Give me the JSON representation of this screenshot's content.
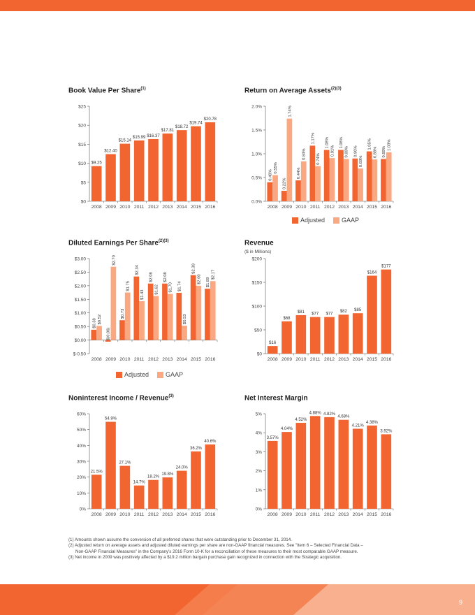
{
  "colors": {
    "adjusted": "#f26531",
    "gaap": "#f9a882",
    "axis": "#555555",
    "text": "#333333"
  },
  "legend": {
    "adjusted": "Adjusted",
    "gaap": "GAAP"
  },
  "page_number": "9",
  "footnotes": [
    "(1) Amounts shown assume the conversion of all preferred shares that were outstanding prior to December 31, 2014.",
    "(2) Adjusted return on average assets and adjusted diluted earnings per share are non-GAAP financial measures. See \"Item 6 – Selected Financial Data –",
    "Non-GAAP Financial Measures\" in the Company's 2016 Form 10-K for a reconciliation of these measures to their most comparable GAAP measure.",
    "(3) Net income in 2009 was positively affected by a $19.2 million bargain purchase gain recognized in connection with the Strategic acquisition."
  ],
  "chart_data": [
    {
      "id": "bvps",
      "type": "bar",
      "title": "Book Value Per Share",
      "title_sup": "(1)",
      "subtitle": "",
      "categories": [
        "2008",
        "2009",
        "2010",
        "2011",
        "2012",
        "2013",
        "2014",
        "2015",
        "2016"
      ],
      "series": [
        {
          "name": "",
          "values": [
            9.25,
            12.4,
            15.14,
            15.99,
            16.37,
            17.81,
            18.72,
            19.74,
            20.78
          ],
          "labels": [
            "$9.25",
            "$12.40",
            "$15.14",
            "$15.99",
            "$16.37",
            "$17.81",
            "$18.72",
            "$19.74",
            "$20.78"
          ]
        }
      ],
      "ylim": [
        0,
        25
      ],
      "yticks": [
        0,
        5,
        10,
        15,
        20,
        25
      ],
      "ytick_labels": [
        "$0",
        "$5",
        "$10",
        "$15",
        "$20",
        "$25"
      ],
      "label_rotate": false,
      "legend": false
    },
    {
      "id": "roaa",
      "type": "bar",
      "title": "Return on Average Assets",
      "title_sup": "(2)(3)",
      "subtitle": "",
      "categories": [
        "2008",
        "2009",
        "2010",
        "2011",
        "2012",
        "2013",
        "2014",
        "2015",
        "2016"
      ],
      "series": [
        {
          "name": "Adjusted",
          "values": [
            0.4,
            0.22,
            0.44,
            1.17,
            1.08,
            1.08,
            0.9,
            1.05,
            0.89
          ],
          "labels": [
            "0.40%",
            "0.22%",
            "0.44%",
            "1.17%",
            "1.08%",
            "1.08%",
            "0.90%",
            "1.05%",
            "0.89%"
          ]
        },
        {
          "name": "GAAP",
          "values": [
            0.55,
            1.74,
            0.84,
            0.74,
            0.91,
            0.89,
            0.69,
            0.88,
            1.03
          ],
          "labels": [
            "0.55%",
            "1.74%",
            "0.84%",
            "0.74%",
            "0.91%",
            "0.89%",
            "0.69%",
            "0.88%",
            "1.03%"
          ]
        }
      ],
      "ylim": [
        0,
        2.0
      ],
      "yticks": [
        0,
        0.5,
        1.0,
        1.5,
        2.0
      ],
      "ytick_labels": [
        "0.0%",
        "0.5%",
        "1.0%",
        "1.5%",
        "2.0%"
      ],
      "label_rotate": true,
      "legend": true
    },
    {
      "id": "eps",
      "type": "bar",
      "title": "Diluted Earnings Per Share",
      "title_sup": "(2)(3)",
      "subtitle": "",
      "categories": [
        "2008",
        "2009",
        "2010",
        "2011",
        "2012",
        "2013",
        "2014",
        "2015",
        "2016"
      ],
      "series": [
        {
          "name": "Adjusted",
          "values": [
            0.38,
            -0.06,
            0.73,
            2.34,
            2.08,
            2.08,
            1.74,
            2.39,
            1.89
          ],
          "labels": [
            "$0.38",
            "$(0.06)",
            "$0.73",
            "$2.34",
            "$2.08",
            "$2.08",
            "$1.74",
            "$2.39",
            "$1.89"
          ]
        },
        {
          "name": "GAAP",
          "values": [
            0.52,
            2.7,
            1.75,
            1.43,
            1.62,
            1.7,
            0.53,
            2.0,
            2.17
          ],
          "labels": [
            "$0.52",
            "$2.70",
            "$1.75",
            "$1.43",
            "$1.62",
            "$1.70",
            "$0.53",
            "$2.00",
            "$2.17"
          ]
        }
      ],
      "ylim": [
        -0.5,
        3.0
      ],
      "yticks": [
        -0.5,
        0,
        0.5,
        1.0,
        1.5,
        2.0,
        2.5,
        3.0
      ],
      "ytick_labels": [
        "$-0.50",
        "$0.00",
        "$0.50",
        "$1.00",
        "$1.50",
        "$2.00",
        "$2.50",
        "$3.00"
      ],
      "label_rotate": true,
      "legend": true
    },
    {
      "id": "revenue",
      "type": "bar",
      "title": "Revenue",
      "title_sup": "",
      "subtitle": "($ in Millions)",
      "categories": [
        "2008",
        "2009",
        "2010",
        "2011",
        "2012",
        "2013",
        "2014",
        "2015",
        "2016"
      ],
      "series": [
        {
          "name": "",
          "values": [
            16,
            68,
            81,
            77,
            77,
            82,
            85,
            164,
            177
          ],
          "labels": [
            "$16",
            "$68",
            "$81",
            "$77",
            "$77",
            "$82",
            "$85",
            "$164",
            "$177"
          ]
        }
      ],
      "ylim": [
        0,
        200
      ],
      "yticks": [
        0,
        50,
        100,
        150,
        200
      ],
      "ytick_labels": [
        "$0",
        "$50",
        "$100",
        "$150",
        "$200"
      ],
      "label_rotate": false,
      "legend": false
    },
    {
      "id": "nonint",
      "type": "bar",
      "title": "Noninterest Income / Revenue",
      "title_sup": "(3)",
      "subtitle": "",
      "categories": [
        "2008",
        "2009",
        "2010",
        "2011",
        "2012",
        "2013",
        "2014",
        "2015",
        "2016"
      ],
      "series": [
        {
          "name": "",
          "values": [
            21.5,
            54.9,
            27.1,
            14.7,
            18.2,
            19.8,
            24.0,
            36.2,
            40.6
          ],
          "labels": [
            "21.5%",
            "54.9%",
            "27.1%",
            "14.7%",
            "18.2%",
            "19.8%",
            "24.0%",
            "36.2%",
            "40.6%"
          ]
        }
      ],
      "ylim": [
        0,
        60
      ],
      "yticks": [
        0,
        10,
        20,
        30,
        40,
        50,
        60
      ],
      "ytick_labels": [
        "0%",
        "10%",
        "20%",
        "30%",
        "40%",
        "50%",
        "60%"
      ],
      "label_rotate": false,
      "legend": false
    },
    {
      "id": "nim",
      "type": "bar",
      "title": "Net Interest Margin",
      "title_sup": "",
      "subtitle": "",
      "categories": [
        "2008",
        "2009",
        "2010",
        "2011",
        "2012",
        "2013",
        "2014",
        "2015",
        "2016"
      ],
      "series": [
        {
          "name": "",
          "values": [
            3.57,
            4.04,
            4.52,
            4.88,
            4.82,
            4.68,
            4.21,
            4.38,
            3.92
          ],
          "labels": [
            "3.57%",
            "4.04%",
            "4.52%",
            "4.88%",
            "4.82%",
            "4.68%",
            "4.21%",
            "4.38%",
            "3.92%"
          ]
        }
      ],
      "ylim": [
        0,
        5
      ],
      "yticks": [
        0,
        1,
        2,
        3,
        4,
        5
      ],
      "ytick_labels": [
        "0%",
        "1%",
        "2%",
        "3%",
        "4%",
        "5%"
      ],
      "label_rotate": false,
      "legend": false
    }
  ]
}
